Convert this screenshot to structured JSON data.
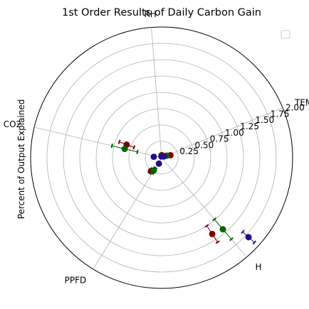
{
  "chart_data": {
    "type": "polar-scatter",
    "title": "1st Order Results of Daily Carbon Gain",
    "ylabel": "Percent of Output Explained",
    "categories": [
      "TEMP",
      "RH",
      "CO2",
      "PPFD",
      "H"
    ],
    "radial_ticks": [
      "0.25",
      "0.50",
      "0.75",
      "1.00",
      "1.25",
      "1.50",
      "1.75",
      "2.00"
    ],
    "radial_tick_values": [
      0.25,
      0.5,
      0.75,
      1.0,
      1.25,
      1.5,
      1.75,
      2.0
    ],
    "rlim": [
      0,
      2.0
    ],
    "grid": true,
    "legend": "top-right (empty)",
    "series": [
      {
        "color": "#800000",
        "points": [
          {
            "category": "TEMP",
            "r": 0.14,
            "err": 0.02
          },
          {
            "category": "RH",
            "r": 0.04,
            "err": 0.01
          },
          {
            "category": "CO2",
            "r": 0.57,
            "err": 0.12
          },
          {
            "category": "PPFD",
            "r": 0.26,
            "err": 0.04
          },
          {
            "category": "H",
            "r": 1.4,
            "err": 0.15
          }
        ]
      },
      {
        "color": "#006400",
        "points": [
          {
            "category": "TEMP",
            "r": 0.08,
            "err": 0.02
          },
          {
            "category": "RH",
            "r": 0.03,
            "err": 0.01
          },
          {
            "category": "CO2",
            "r": 0.58,
            "err": 0.2
          },
          {
            "category": "PPFD",
            "r": 0.23,
            "err": 0.05
          },
          {
            "category": "H",
            "r": 1.44,
            "err": 0.2
          }
        ]
      },
      {
        "color": "#2a0a8a",
        "points": [
          {
            "category": "TEMP",
            "r": 0.04,
            "err": 0.01
          },
          {
            "category": "RH",
            "r": 0.02,
            "err": 0.01
          },
          {
            "category": "CO2",
            "r": 0.12,
            "err": 0.02
          },
          {
            "category": "PPFD",
            "r": 0.1,
            "err": 0.02
          },
          {
            "category": "H",
            "r": 1.8,
            "err": 0.12
          }
        ]
      }
    ]
  }
}
